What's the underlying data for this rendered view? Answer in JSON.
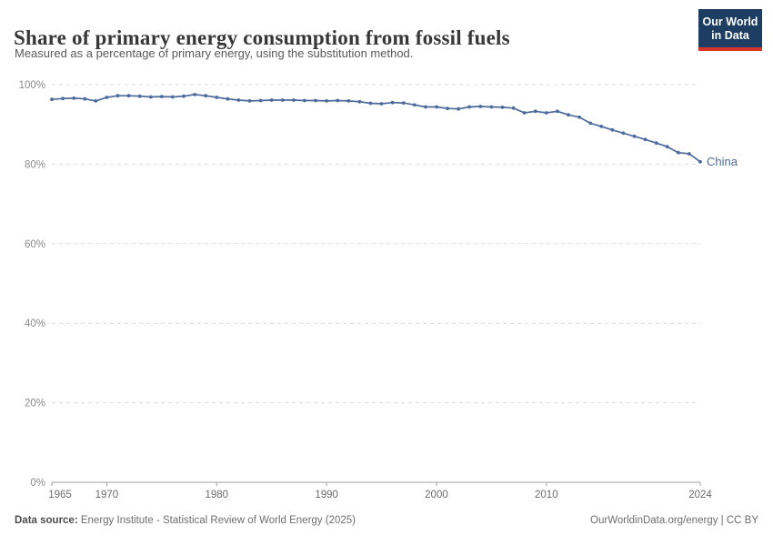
{
  "header": {
    "title": "Share of primary energy consumption from fossil fuels",
    "subtitle": "Measured as a percentage of primary energy, using the substitution method."
  },
  "logo": {
    "line1": "Our World",
    "line2": "in Data",
    "bg_color": "#1d3d63",
    "accent_color": "#d8352a"
  },
  "footer": {
    "source_label": "Data source:",
    "source_text": " Energy Institute - Statistical Review of World Energy (2025)",
    "right_link": "OurWorldinData.org/energy",
    "separator": " | ",
    "license": "CC BY"
  },
  "chart_data": {
    "type": "line",
    "title": "Share of primary energy consumption from fossil fuels",
    "subtitle": "Measured as a percentage of primary energy, using the substitution method.",
    "xlabel": "",
    "ylabel": "",
    "xlim": [
      1965,
      2024
    ],
    "ylim": [
      0,
      100
    ],
    "grid": "horizontal-dashed",
    "legend_position": "end-of-line-label",
    "grid_color": "#dcdcdc",
    "axis_color": "#a1a1a1",
    "ytick_color": "#8b8b8b",
    "xtick_color": "#6b6b6b",
    "x": [
      1965,
      1966,
      1967,
      1968,
      1969,
      1970,
      1971,
      1972,
      1973,
      1974,
      1975,
      1976,
      1977,
      1978,
      1979,
      1980,
      1981,
      1982,
      1983,
      1984,
      1985,
      1986,
      1987,
      1988,
      1989,
      1990,
      1991,
      1992,
      1993,
      1994,
      1995,
      1996,
      1997,
      1998,
      1999,
      2000,
      2001,
      2002,
      2003,
      2004,
      2005,
      2006,
      2007,
      2008,
      2009,
      2010,
      2011,
      2012,
      2013,
      2014,
      2015,
      2016,
      2017,
      2018,
      2019,
      2020,
      2021,
      2022,
      2023,
      2024
    ],
    "series": [
      {
        "name": "China",
        "color": "#4C6A9C",
        "values": [
          96.3,
          96.5,
          96.6,
          96.4,
          95.9,
          96.8,
          97.2,
          97.2,
          97.1,
          96.9,
          97.0,
          96.9,
          97.1,
          97.5,
          97.2,
          96.8,
          96.4,
          96.1,
          95.9,
          96.0,
          96.1,
          96.1,
          96.1,
          96.0,
          96.0,
          95.9,
          96.0,
          95.9,
          95.7,
          95.3,
          95.2,
          95.5,
          95.4,
          94.9,
          94.4,
          94.4,
          94.0,
          93.9,
          94.4,
          94.5,
          94.4,
          94.3,
          94.1,
          92.9,
          93.3,
          92.9,
          93.3,
          92.4,
          91.8,
          90.3,
          89.5,
          88.6,
          87.8,
          87.0,
          86.2,
          85.3,
          84.4,
          82.9,
          82.6,
          80.6
        ]
      }
    ],
    "yticks": [
      {
        "value": 0,
        "label": "0%"
      },
      {
        "value": 20,
        "label": "20%"
      },
      {
        "value": 40,
        "label": "40%"
      },
      {
        "value": 60,
        "label": "60%"
      },
      {
        "value": 80,
        "label": "80%"
      },
      {
        "value": 100,
        "label": "100%"
      }
    ],
    "xticks": [
      {
        "value": 1965,
        "label": "1965"
      },
      {
        "value": 1970,
        "label": "1970"
      },
      {
        "value": 1980,
        "label": "1980"
      },
      {
        "value": 1990,
        "label": "1990"
      },
      {
        "value": 2000,
        "label": "2000"
      },
      {
        "value": 2010,
        "label": "2010"
      },
      {
        "value": 2024,
        "label": "2024"
      }
    ]
  }
}
